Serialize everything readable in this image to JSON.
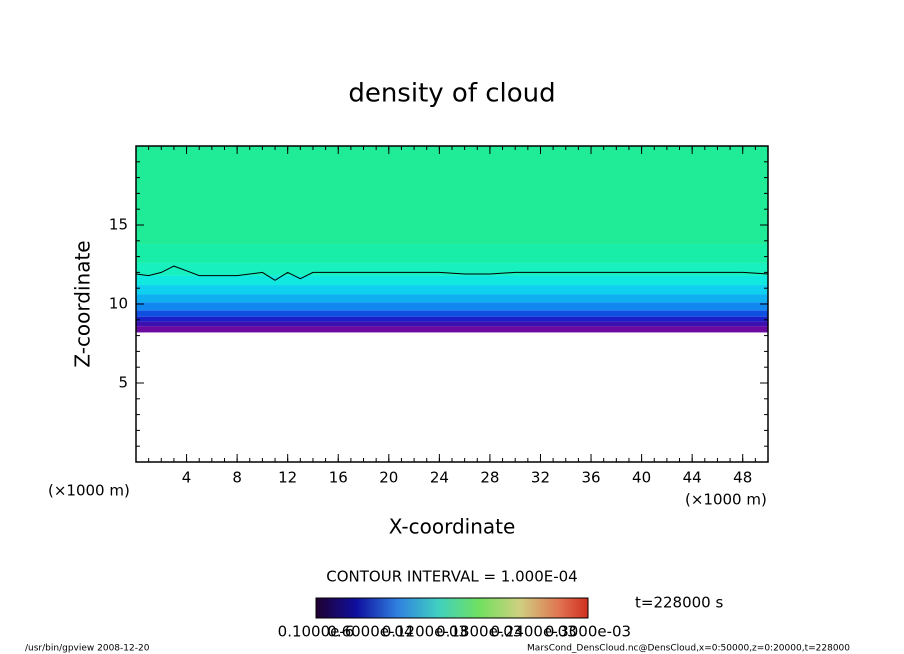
{
  "chart_data": {
    "type": "contour",
    "title": "density of cloud",
    "x_label": "X-coordinate",
    "y_label": "Z-coordinate",
    "x_unit": "(×1000 m)",
    "y_unit": "(×1000 m)",
    "xlim": [
      0,
      50
    ],
    "ylim": [
      0,
      20
    ],
    "xticks": [
      4,
      8,
      12,
      16,
      20,
      24,
      28,
      32,
      36,
      40,
      44,
      48
    ],
    "yticks": [
      5,
      10,
      15
    ],
    "fill": {
      "z": [
        8.2,
        8.6,
        8.9,
        9.2,
        9.6,
        10.1,
        10.6,
        11.2,
        11.8,
        12.6,
        13.8,
        20
      ],
      "colors": [
        "#6a0aa0",
        "#3a10b0",
        "#1a20c8",
        "#1050e0",
        "#1088f0",
        "#10b0f0",
        "#10d0f0",
        "#10e8e0",
        "#18f0c0",
        "#18eea8",
        "#20ec98"
      ]
    },
    "series": [
      {
        "name": "contour",
        "color": "#000000",
        "x": [
          0,
          1,
          2,
          3,
          4,
          5,
          6,
          8,
          10,
          11,
          12,
          13,
          14,
          16,
          20,
          24,
          26,
          28,
          30,
          32,
          36,
          40,
          44,
          48,
          50
        ],
        "values": [
          11.9,
          11.8,
          12.0,
          12.4,
          12.1,
          11.8,
          11.8,
          11.8,
          12.0,
          11.5,
          12.0,
          11.6,
          12.0,
          12.0,
          12.0,
          12.0,
          11.9,
          11.9,
          12.0,
          12.0,
          12.0,
          12.0,
          12.0,
          12.0,
          11.9
        ]
      }
    ],
    "contour_interval": "CONTOUR INTERVAL = 1.000E-04",
    "time_label": "t=228000 s",
    "colorbar_labels": [
      "0.1000e-6",
      "0.6000e-04",
      "0.1200e-03",
      "0.1800e-03",
      "0.2400e-03",
      "0.3000e-03"
    ],
    "footer_left": "/usr/bin/gpview  2008-12-20",
    "footer_right": "MarsCond_DensCloud.nc@DensCloud,x=0:50000,z=0:20000,t=228000"
  }
}
